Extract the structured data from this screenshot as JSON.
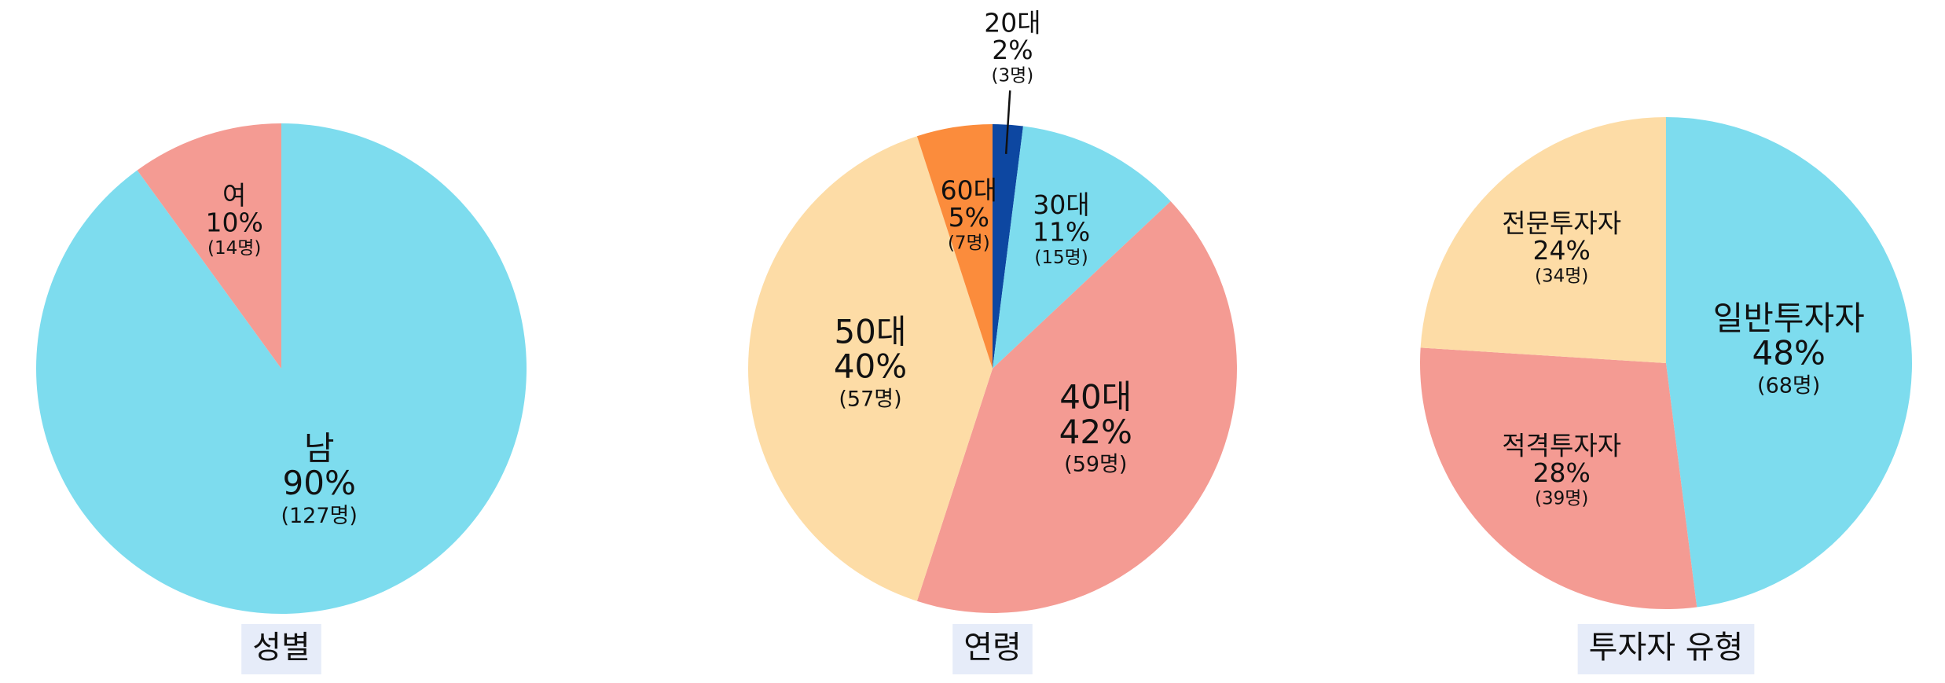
{
  "chart_data": [
    {
      "type": "pie",
      "title": "성별",
      "categories": [
        "남",
        "여"
      ],
      "values": [
        90,
        10
      ],
      "value_labels": [
        "90%",
        "10%"
      ],
      "count_labels": [
        "(127명)",
        "(14명)"
      ],
      "colors": [
        "#7ddcee",
        "#f49b93"
      ]
    },
    {
      "type": "pie",
      "title": "연령",
      "categories": [
        "20대",
        "30대",
        "40대",
        "50대",
        "60대"
      ],
      "values": [
        2,
        11,
        42,
        40,
        5
      ],
      "value_labels": [
        "2%",
        "11%",
        "42%",
        "40%",
        "5%"
      ],
      "count_labels": [
        "(3명)",
        "(15명)",
        "(59명)",
        "(57명)",
        "(7명)"
      ],
      "colors": [
        "#0d47a1",
        "#7ddcee",
        "#f49b93",
        "#fddca6",
        "#fb8c3c"
      ]
    },
    {
      "type": "pie",
      "title": "투자자 유형",
      "categories": [
        "일반투자자",
        "적격투자자",
        "전문투자자"
      ],
      "values": [
        48,
        28,
        24
      ],
      "value_labels": [
        "48%",
        "28%",
        "24%"
      ],
      "count_labels": [
        "(68명)",
        "(39명)",
        "(34명)"
      ],
      "colors": [
        "#7ddcee",
        "#f49b93",
        "#fddca6"
      ]
    }
  ]
}
